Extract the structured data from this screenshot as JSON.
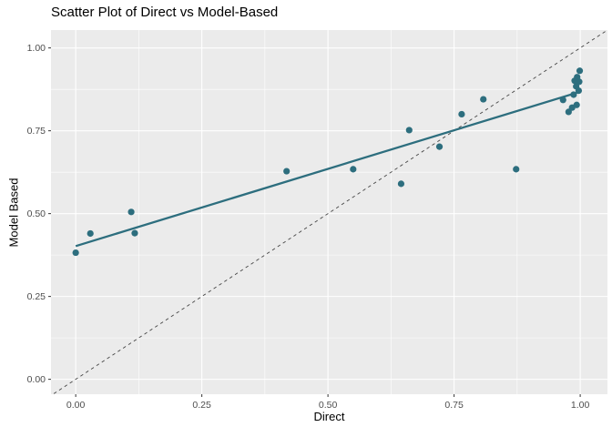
{
  "chart_data": {
    "type": "scatter",
    "title": "Scatter Plot of Direct vs Model-Based",
    "xlabel": "Direct",
    "ylabel": "Model Based",
    "xlim": [
      -0.049,
      1.054
    ],
    "ylim": [
      -0.045,
      1.054
    ],
    "x_ticks": [
      0,
      0.25,
      0.5,
      0.75,
      1.0
    ],
    "y_ticks": [
      0,
      0.25,
      0.5,
      0.75,
      1.0
    ],
    "x_minor_ticks": [
      0.125,
      0.375,
      0.625,
      0.875
    ],
    "y_minor_ticks": [
      0.125,
      0.375,
      0.625,
      0.875
    ],
    "tick_label_format_decimals": 2,
    "grid": "major+minor",
    "legend": "none",
    "points": [
      [
        0.0,
        0.382
      ],
      [
        0.029,
        0.44
      ],
      [
        0.11,
        0.505
      ],
      [
        0.117,
        0.441
      ],
      [
        0.418,
        0.628
      ],
      [
        0.55,
        0.634
      ],
      [
        0.645,
        0.59
      ],
      [
        0.661,
        0.752
      ],
      [
        0.721,
        0.702
      ],
      [
        0.765,
        0.8
      ],
      [
        0.808,
        0.845
      ],
      [
        0.873,
        0.634
      ],
      [
        0.966,
        0.843
      ],
      [
        0.977,
        0.807
      ],
      [
        0.984,
        0.82
      ],
      [
        0.993,
        0.828
      ],
      [
        0.987,
        0.859
      ],
      [
        0.992,
        0.884
      ],
      [
        0.997,
        0.871
      ],
      [
        0.998,
        0.898
      ],
      [
        0.989,
        0.901
      ],
      [
        0.994,
        0.912
      ],
      [
        0.999,
        0.931
      ]
    ],
    "regression_line": {
      "x1": 0.0,
      "y1": 0.402,
      "x2": 1.0,
      "y2": 0.868
    },
    "identity_line": {
      "slope": 1,
      "intercept": 0,
      "style": "dashed"
    },
    "colors": {
      "point": "#2d6e7e",
      "smooth_line": "#2d6e7e",
      "identity_line": "#454545",
      "panel_background": "#ebebeb",
      "gridline": "#ffffff",
      "tick_mark": "#333333",
      "tick_label": "#4d4d4d",
      "title": "#000000",
      "plot_background": "#ffffff"
    }
  }
}
